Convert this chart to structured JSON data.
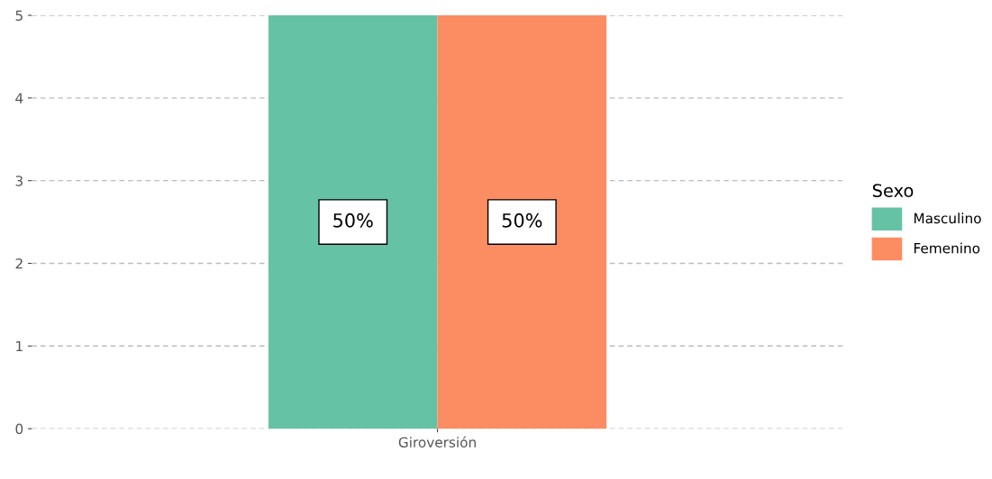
{
  "chart_data": {
    "type": "bar",
    "categories": [
      "Giroversión"
    ],
    "series": [
      {
        "name": "Masculino",
        "color": "#66c2a5",
        "values": [
          5
        ]
      },
      {
        "name": "Femenino",
        "color": "#fc8d62",
        "values": [
          5
        ]
      }
    ],
    "annotations": [
      "50%",
      "50%"
    ],
    "ylim": [
      0,
      5
    ],
    "yticks": [
      0,
      1,
      2,
      3,
      4,
      5
    ],
    "grid": "y",
    "legend": "right",
    "legend_title": "Sexo"
  }
}
